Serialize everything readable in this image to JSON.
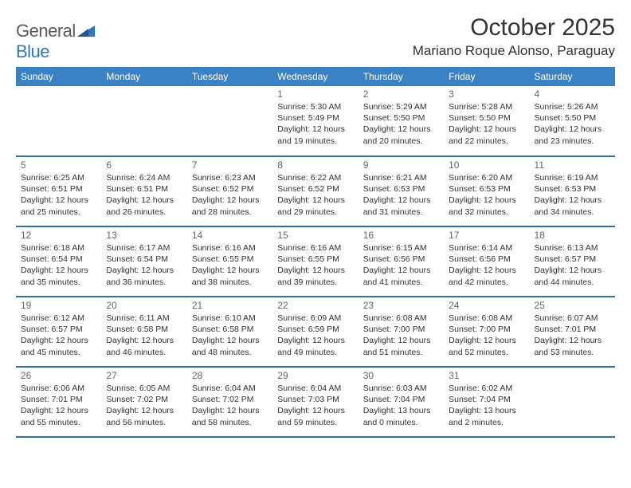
{
  "logo": {
    "text_general": "General",
    "text_blue": "Blue",
    "mark_color": "#2f78bd"
  },
  "header": {
    "month_title": "October 2025",
    "location": "Mariano Roque Alonso, Paraguay"
  },
  "calendar": {
    "day_headers": [
      "Sunday",
      "Monday",
      "Tuesday",
      "Wednesday",
      "Thursday",
      "Friday",
      "Saturday"
    ],
    "header_bg": "#3b82c4",
    "header_fg": "#ffffff",
    "row_border_color": "#2f6ea8",
    "weeks": [
      [
        {
          "day": "",
          "sunrise": "",
          "sunset": "",
          "daylight": ""
        },
        {
          "day": "",
          "sunrise": "",
          "sunset": "",
          "daylight": ""
        },
        {
          "day": "",
          "sunrise": "",
          "sunset": "",
          "daylight": ""
        },
        {
          "day": "1",
          "sunrise": "Sunrise: 5:30 AM",
          "sunset": "Sunset: 5:49 PM",
          "daylight": "Daylight: 12 hours and 19 minutes."
        },
        {
          "day": "2",
          "sunrise": "Sunrise: 5:29 AM",
          "sunset": "Sunset: 5:50 PM",
          "daylight": "Daylight: 12 hours and 20 minutes."
        },
        {
          "day": "3",
          "sunrise": "Sunrise: 5:28 AM",
          "sunset": "Sunset: 5:50 PM",
          "daylight": "Daylight: 12 hours and 22 minutes."
        },
        {
          "day": "4",
          "sunrise": "Sunrise: 5:26 AM",
          "sunset": "Sunset: 5:50 PM",
          "daylight": "Daylight: 12 hours and 23 minutes."
        }
      ],
      [
        {
          "day": "5",
          "sunrise": "Sunrise: 6:25 AM",
          "sunset": "Sunset: 6:51 PM",
          "daylight": "Daylight: 12 hours and 25 minutes."
        },
        {
          "day": "6",
          "sunrise": "Sunrise: 6:24 AM",
          "sunset": "Sunset: 6:51 PM",
          "daylight": "Daylight: 12 hours and 26 minutes."
        },
        {
          "day": "7",
          "sunrise": "Sunrise: 6:23 AM",
          "sunset": "Sunset: 6:52 PM",
          "daylight": "Daylight: 12 hours and 28 minutes."
        },
        {
          "day": "8",
          "sunrise": "Sunrise: 6:22 AM",
          "sunset": "Sunset: 6:52 PM",
          "daylight": "Daylight: 12 hours and 29 minutes."
        },
        {
          "day": "9",
          "sunrise": "Sunrise: 6:21 AM",
          "sunset": "Sunset: 6:53 PM",
          "daylight": "Daylight: 12 hours and 31 minutes."
        },
        {
          "day": "10",
          "sunrise": "Sunrise: 6:20 AM",
          "sunset": "Sunset: 6:53 PM",
          "daylight": "Daylight: 12 hours and 32 minutes."
        },
        {
          "day": "11",
          "sunrise": "Sunrise: 6:19 AM",
          "sunset": "Sunset: 6:53 PM",
          "daylight": "Daylight: 12 hours and 34 minutes."
        }
      ],
      [
        {
          "day": "12",
          "sunrise": "Sunrise: 6:18 AM",
          "sunset": "Sunset: 6:54 PM",
          "daylight": "Daylight: 12 hours and 35 minutes."
        },
        {
          "day": "13",
          "sunrise": "Sunrise: 6:17 AM",
          "sunset": "Sunset: 6:54 PM",
          "daylight": "Daylight: 12 hours and 36 minutes."
        },
        {
          "day": "14",
          "sunrise": "Sunrise: 6:16 AM",
          "sunset": "Sunset: 6:55 PM",
          "daylight": "Daylight: 12 hours and 38 minutes."
        },
        {
          "day": "15",
          "sunrise": "Sunrise: 6:16 AM",
          "sunset": "Sunset: 6:55 PM",
          "daylight": "Daylight: 12 hours and 39 minutes."
        },
        {
          "day": "16",
          "sunrise": "Sunrise: 6:15 AM",
          "sunset": "Sunset: 6:56 PM",
          "daylight": "Daylight: 12 hours and 41 minutes."
        },
        {
          "day": "17",
          "sunrise": "Sunrise: 6:14 AM",
          "sunset": "Sunset: 6:56 PM",
          "daylight": "Daylight: 12 hours and 42 minutes."
        },
        {
          "day": "18",
          "sunrise": "Sunrise: 6:13 AM",
          "sunset": "Sunset: 6:57 PM",
          "daylight": "Daylight: 12 hours and 44 minutes."
        }
      ],
      [
        {
          "day": "19",
          "sunrise": "Sunrise: 6:12 AM",
          "sunset": "Sunset: 6:57 PM",
          "daylight": "Daylight: 12 hours and 45 minutes."
        },
        {
          "day": "20",
          "sunrise": "Sunrise: 6:11 AM",
          "sunset": "Sunset: 6:58 PM",
          "daylight": "Daylight: 12 hours and 46 minutes."
        },
        {
          "day": "21",
          "sunrise": "Sunrise: 6:10 AM",
          "sunset": "Sunset: 6:58 PM",
          "daylight": "Daylight: 12 hours and 48 minutes."
        },
        {
          "day": "22",
          "sunrise": "Sunrise: 6:09 AM",
          "sunset": "Sunset: 6:59 PM",
          "daylight": "Daylight: 12 hours and 49 minutes."
        },
        {
          "day": "23",
          "sunrise": "Sunrise: 6:08 AM",
          "sunset": "Sunset: 7:00 PM",
          "daylight": "Daylight: 12 hours and 51 minutes."
        },
        {
          "day": "24",
          "sunrise": "Sunrise: 6:08 AM",
          "sunset": "Sunset: 7:00 PM",
          "daylight": "Daylight: 12 hours and 52 minutes."
        },
        {
          "day": "25",
          "sunrise": "Sunrise: 6:07 AM",
          "sunset": "Sunset: 7:01 PM",
          "daylight": "Daylight: 12 hours and 53 minutes."
        }
      ],
      [
        {
          "day": "26",
          "sunrise": "Sunrise: 6:06 AM",
          "sunset": "Sunset: 7:01 PM",
          "daylight": "Daylight: 12 hours and 55 minutes."
        },
        {
          "day": "27",
          "sunrise": "Sunrise: 6:05 AM",
          "sunset": "Sunset: 7:02 PM",
          "daylight": "Daylight: 12 hours and 56 minutes."
        },
        {
          "day": "28",
          "sunrise": "Sunrise: 6:04 AM",
          "sunset": "Sunset: 7:02 PM",
          "daylight": "Daylight: 12 hours and 58 minutes."
        },
        {
          "day": "29",
          "sunrise": "Sunrise: 6:04 AM",
          "sunset": "Sunset: 7:03 PM",
          "daylight": "Daylight: 12 hours and 59 minutes."
        },
        {
          "day": "30",
          "sunrise": "Sunrise: 6:03 AM",
          "sunset": "Sunset: 7:04 PM",
          "daylight": "Daylight: 13 hours and 0 minutes."
        },
        {
          "day": "31",
          "sunrise": "Sunrise: 6:02 AM",
          "sunset": "Sunset: 7:04 PM",
          "daylight": "Daylight: 13 hours and 2 minutes."
        },
        {
          "day": "",
          "sunrise": "",
          "sunset": "",
          "daylight": ""
        }
      ]
    ]
  }
}
